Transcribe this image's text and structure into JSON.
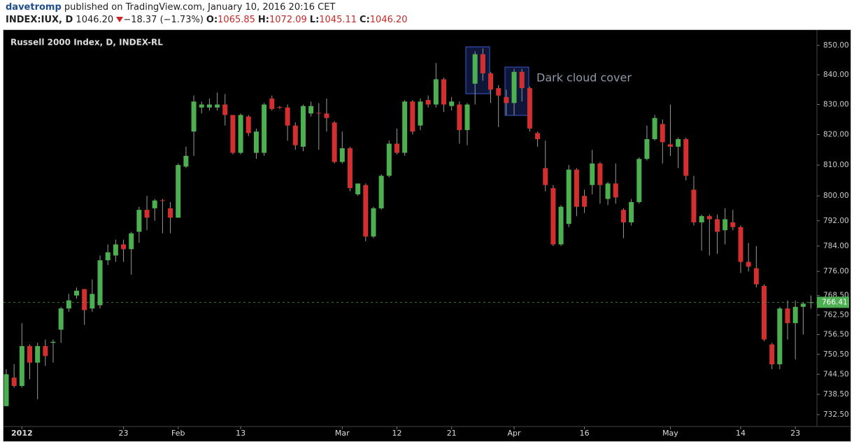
{
  "header": {
    "author": "davetromp",
    "published": "published on TradingView.com, January 10, 2016 20:16 CET",
    "symbol": "INDEX:IUX, D",
    "last": "1046.20",
    "change": "−18.37 (−1.73%)",
    "ohlc": [
      {
        "label": "O:",
        "value": "1065.85"
      },
      {
        "label": "H:",
        "value": "1072.09"
      },
      {
        "label": "L:",
        "value": "1045.11"
      },
      {
        "label": "C:",
        "value": "1046.20"
      }
    ]
  },
  "chart_data": {
    "type": "candlestick",
    "title": "Russell 2000 Index, D, INDEX-RL",
    "annotation": "Dark cloud cover",
    "categories": [
      null,
      null,
      "2012",
      null,
      null,
      null,
      null,
      null,
      null,
      null,
      null,
      null,
      null,
      null,
      null,
      "23",
      null,
      null,
      null,
      null,
      null,
      null,
      "Feb",
      null,
      null,
      null,
      null,
      null,
      null,
      null,
      "13",
      null,
      null,
      null,
      null,
      null,
      null,
      null,
      null,
      null,
      null,
      null,
      null,
      "Mar",
      null,
      null,
      null,
      null,
      null,
      null,
      "12",
      null,
      null,
      null,
      null,
      null,
      null,
      "21",
      null,
      null,
      null,
      null,
      null,
      null,
      null,
      "Apr",
      null,
      null,
      null,
      null,
      null,
      null,
      null,
      null,
      "16",
      null,
      null,
      null,
      null,
      null,
      null,
      null,
      null,
      null,
      null,
      "May",
      null,
      null,
      null,
      null,
      null,
      null,
      null,
      null,
      "14",
      null,
      null,
      null,
      null,
      null,
      null,
      "23",
      null,
      null
    ],
    "open": [
      735,
      743.5,
      741,
      753,
      748,
      753,
      754,
      758,
      764.5,
      768.5,
      770.5,
      764.5,
      765.5,
      779.5,
      781,
      784.5,
      783,
      788.5,
      795.5,
      796,
      798.6,
      796,
      793,
      809.5,
      821,
      829,
      829,
      829,
      830,
      826.5,
      814,
      826,
      814,
      814,
      832,
      829.2,
      829,
      823,
      816,
      827,
      827.2,
      827,
      824,
      811,
      815.5,
      800.5,
      803.5,
      787,
      796,
      806.5,
      817,
      814,
      831,
      823,
      831.5,
      830,
      838.5,
      829.5,
      830,
      821.5,
      837,
      847,
      840.5,
      835.5,
      832.5,
      830.5,
      841,
      835.5,
      820.5,
      809,
      802.5,
      784.5,
      791,
      808.5,
      800,
      803.5,
      810.5,
      799,
      804,
      795.5,
      791.5,
      798,
      812,
      818.5,
      823.5,
      816.8,
      816,
      818.5,
      802,
      791.5,
      793.5,
      792.5,
      789,
      791.5,
      790,
      779,
      777,
      771.5,
      753.5,
      747.5,
      764.5,
      760,
      765,
      766.2
    ],
    "high": [
      746,
      747.5,
      760,
      753.5,
      754,
      755,
      755,
      765,
      769,
      771,
      770.5,
      773.5,
      781,
      784.5,
      786,
      786,
      788.5,
      796.5,
      800,
      799,
      799,
      798,
      810.5,
      816,
      833,
      831,
      832,
      834,
      833.5,
      826.5,
      827,
      826.5,
      822,
      830.5,
      833,
      829.5,
      830,
      824,
      830,
      831,
      830.5,
      832,
      824.5,
      821,
      816,
      804,
      804,
      796.5,
      807,
      818,
      822,
      831.5,
      831.5,
      832,
      833,
      844,
      839,
      832.5,
      831,
      830.5,
      848,
      849,
      841,
      836.5,
      835,
      842,
      842,
      836,
      821,
      818,
      803.5,
      797,
      810,
      809,
      802,
      815,
      811,
      804.5,
      810.5,
      796,
      799,
      812.5,
      823,
      826.5,
      825,
      830,
      819,
      819,
      806.5,
      794,
      794,
      794,
      796,
      795.5,
      790.5,
      785,
      784,
      772,
      754,
      765,
      767,
      767,
      766.5,
      768.5
    ],
    "low": [
      735,
      740.5,
      740.5,
      743,
      737,
      747,
      748,
      754,
      763.5,
      767.5,
      759.5,
      763.5,
      764.5,
      778,
      779,
      779,
      775,
      785,
      789,
      792,
      788,
      788,
      793,
      809,
      813,
      827,
      828,
      828,
      823,
      813.5,
      813.5,
      819.5,
      812,
      813,
      828,
      828.5,
      818,
      815,
      814.5,
      826,
      815,
      821,
      810.5,
      810.5,
      801.5,
      800,
      785.5,
      786.5,
      795.5,
      806,
      813.5,
      813,
      820,
      821.5,
      829,
      829,
      827.5,
      828,
      817,
      816.5,
      830,
      838,
      830.5,
      822.5,
      826.5,
      826.5,
      831,
      821,
      816,
      801.5,
      784,
      784,
      790,
      793.5,
      794.5,
      800.5,
      797.5,
      797,
      797.5,
      786.5,
      790.5,
      797.5,
      811.5,
      818,
      810.5,
      813,
      809,
      805,
      790.5,
      782.5,
      781,
      781.5,
      784.5,
      789,
      775.5,
      776,
      771,
      754.5,
      746,
      746,
      755,
      749,
      756.5,
      764.5
    ],
    "close": [
      744.5,
      741,
      753,
      748,
      753,
      750,
      754.3,
      764.5,
      767,
      770,
      764,
      769,
      779.5,
      782,
      784.5,
      783,
      788,
      795.5,
      793,
      798.5,
      798.4,
      793,
      810,
      813,
      831,
      830,
      830,
      830,
      826.5,
      814,
      826.5,
      820.5,
      821,
      830,
      828.5,
      829,
      823,
      816.5,
      829.5,
      829.5,
      827,
      825.5,
      811,
      815.5,
      802.5,
      804,
      787,
      796,
      806.5,
      817,
      814,
      831,
      821,
      831,
      830,
      838.5,
      830,
      831,
      821.5,
      830,
      847,
      840.5,
      835,
      833,
      830.5,
      841,
      835.5,
      822,
      818.5,
      803.5,
      784.5,
      796.5,
      808.5,
      796.5,
      796.5,
      810.5,
      803.5,
      804,
      799.5,
      791.5,
      798,
      812,
      818.5,
      825.5,
      817.5,
      816,
      818.5,
      806.5,
      791.5,
      793.5,
      792.5,
      788.5,
      792.5,
      790,
      779,
      777.5,
      772,
      755,
      747.5,
      764.5,
      760,
      765,
      766,
      766.41
    ],
    "up_color": "#4caf50",
    "down_color": "#d32f2f",
    "wick_color": "#9a9a9a",
    "log_scale": true,
    "grid": false,
    "ylim": [
      729.6,
      853.6
    ],
    "yticks": [
      {
        "value": 850,
        "label": "850.00"
      },
      {
        "value": 840,
        "label": "840.00"
      },
      {
        "value": 830,
        "label": "830.00"
      },
      {
        "value": 820,
        "label": "820.00"
      },
      {
        "value": 810,
        "label": "810.00"
      },
      {
        "value": 800,
        "label": "800.00"
      },
      {
        "value": 792,
        "label": "792.00"
      },
      {
        "value": 784,
        "label": "784.00"
      },
      {
        "value": 776,
        "label": "776.00"
      },
      {
        "value": 768.5,
        "label": "768.50"
      },
      {
        "value": 762.5,
        "label": "762.50"
      },
      {
        "value": 756.5,
        "label": "756.50"
      },
      {
        "value": 750.5,
        "label": "750.50"
      },
      {
        "value": 744.5,
        "label": "744.50"
      },
      {
        "value": 738.5,
        "label": "738.50"
      },
      {
        "value": 732.5,
        "label": "732.50"
      }
    ],
    "last_price": 766.41,
    "last_price_color": "#4caf50"
  }
}
